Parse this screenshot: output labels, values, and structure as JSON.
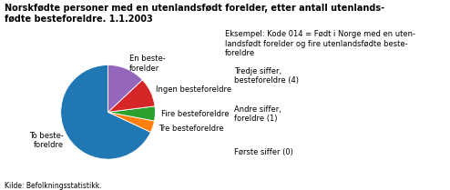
{
  "chart_data": {
    "type": "pie",
    "title": "Norskfødte personer med en utenlandsfødt forelder, etter antall utenlands-\nfødte besteforeldre. 1.1.2003",
    "categories": [
      "To beste-\nforeldre",
      "Tre besteforeldre",
      "Fire besteforeldre",
      "Ingen besteforeldre",
      "En beste-\nforelder"
    ],
    "values": [
      68,
      4,
      5,
      10,
      13
    ],
    "annotations": [
      "Eksempel: Kode 014 = Født i Norge med en uten-\nlandsfødt forelder og fire utenlandsfødte beste-\nforeldre",
      "Tredje siffer,\nbesteforeldre (4)",
      "Andre siffer,\nforeldre (1)",
      "Første siffer (0)",
      "Kilde: Befolkningsstatistikk."
    ]
  }
}
